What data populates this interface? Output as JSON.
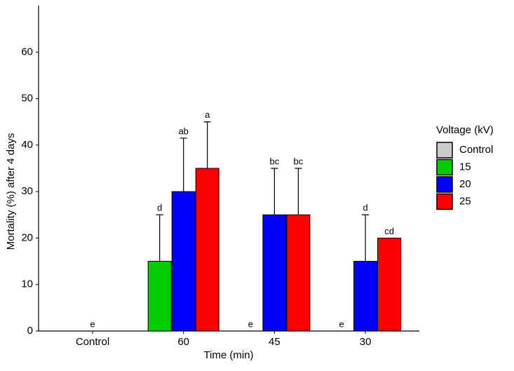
{
  "chart_data": {
    "type": "bar",
    "x_label": "Time (min)",
    "y_label": "Mortality (%) after 4 days",
    "categories": [
      "Control",
      "60",
      "45",
      "30"
    ],
    "series": [
      {
        "name": "Control",
        "color": "#cccccc",
        "values": [
          0,
          null,
          null,
          null
        ],
        "errors": [
          null,
          null,
          null,
          null
        ],
        "labels": [
          "e",
          null,
          null,
          null
        ]
      },
      {
        "name": "15",
        "color": "#00cc00",
        "values": [
          null,
          15,
          0,
          0
        ],
        "errors": [
          null,
          10,
          null,
          null
        ],
        "labels": [
          null,
          "d",
          "e",
          "e"
        ]
      },
      {
        "name": "20",
        "color": "#0000ff",
        "values": [
          null,
          30,
          25,
          15
        ],
        "errors": [
          null,
          11.5,
          10,
          10
        ],
        "labels": [
          null,
          "ab",
          "bc",
          "d"
        ]
      },
      {
        "name": "25",
        "color": "#ff0000",
        "values": [
          null,
          35,
          25,
          20
        ],
        "errors": [
          null,
          10,
          10,
          null
        ],
        "labels": [
          null,
          "a",
          "bc",
          "cd"
        ]
      }
    ],
    "ylim": [
      0,
      70
    ],
    "yticks": [
      0,
      10,
      20,
      30,
      40,
      50,
      60
    ],
    "legend_title": "Voltage (kV)",
    "legend_position": "right"
  }
}
